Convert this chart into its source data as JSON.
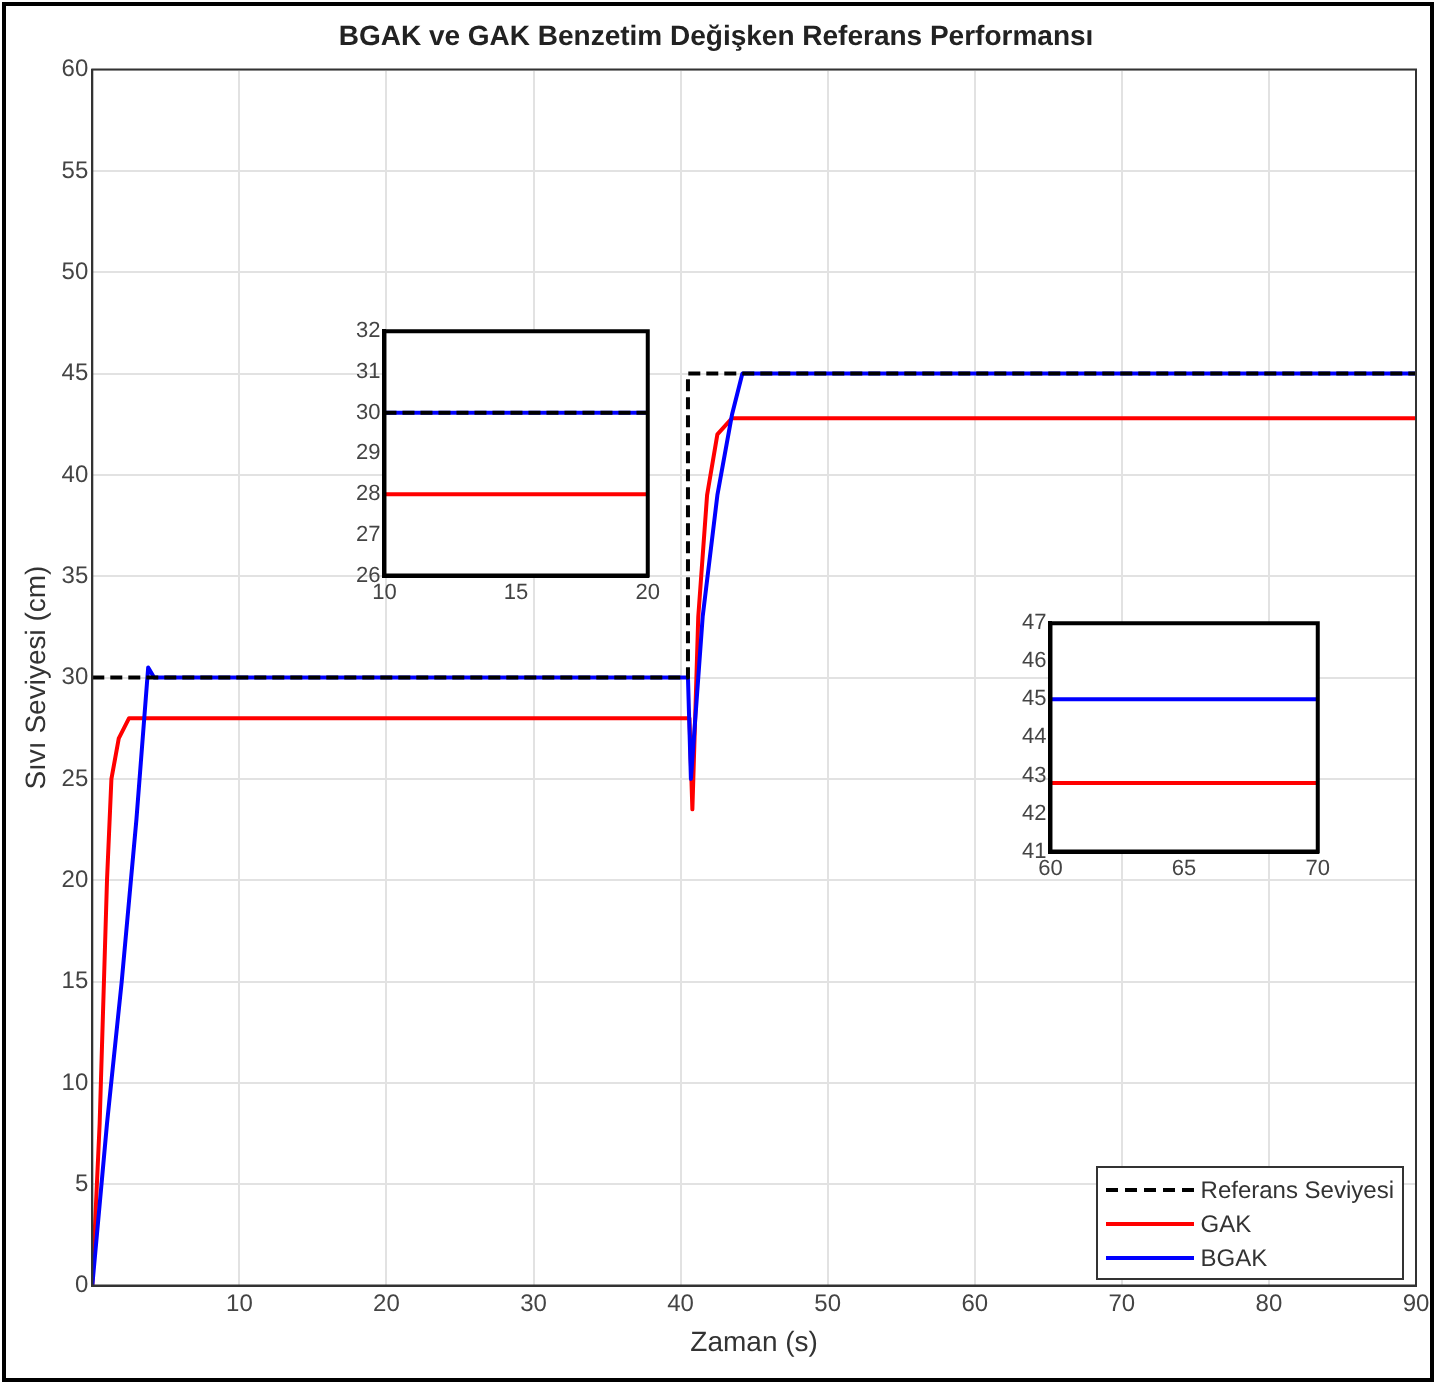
{
  "chart_data": [
    {
      "type": "line",
      "title": "BGAK ve GAK Benzetim Değişken Referans Performansı",
      "xlabel": "Zaman (s)",
      "ylabel": "Sıvı Seviyesi (cm)",
      "xlim": [
        0,
        90
      ],
      "xticks": [
        10,
        20,
        30,
        40,
        50,
        60,
        70,
        80,
        90
      ],
      "ylim": [
        0,
        60
      ],
      "yticks": [
        0,
        5,
        10,
        15,
        20,
        25,
        30,
        35,
        40,
        45,
        50,
        55,
        60
      ],
      "grid": true,
      "legend": "bottom right",
      "marker": "none",
      "series": [
        {
          "name": "Referans Seviyesi",
          "color": "#000000",
          "line_style": "dashed",
          "x": [
            0,
            40.5,
            40.5,
            90
          ],
          "values": [
            30,
            30,
            45,
            45
          ]
        },
        {
          "name": "GAK",
          "color": "#ff0000",
          "x": [
            0,
            0.5,
            1,
            1.3,
            1.8,
            2.5,
            3,
            40.6,
            40.8,
            41.2,
            41.8,
            42.5,
            43.5,
            90
          ],
          "values": [
            0,
            8,
            20,
            25,
            27,
            28,
            28,
            28,
            23.5,
            33,
            39,
            42,
            42.8,
            42.8
          ]
        },
        {
          "name": "BGAK",
          "color": "#0000ff",
          "x": [
            0,
            1,
            2,
            3,
            3.8,
            4.2,
            40.5,
            40.7,
            41.5,
            42.5,
            43.5,
            44.2,
            90
          ],
          "values": [
            0,
            8,
            15,
            23,
            30.5,
            30,
            30,
            25,
            33,
            39,
            43,
            45,
            45
          ]
        }
      ]
    },
    {
      "type": "line",
      "xlim": [
        10,
        20
      ],
      "xticks": [
        10,
        15,
        20
      ],
      "ylim": [
        26,
        32
      ],
      "yticks": [
        26,
        27,
        28,
        29,
        30,
        31,
        32
      ],
      "marker": "none",
      "series": [
        {
          "color": "#000000",
          "line_style": "dashed",
          "x": [
            10,
            20
          ],
          "values": [
            30,
            30
          ]
        },
        {
          "color": "#ff0000",
          "x": [
            10,
            20
          ],
          "values": [
            28,
            28
          ]
        },
        {
          "color": "#0000ff",
          "x": [
            10,
            20
          ],
          "values": [
            30,
            30
          ]
        }
      ]
    },
    {
      "type": "line",
      "xlim": [
        60,
        70
      ],
      "xticks": [
        60,
        65,
        70
      ],
      "ylim": [
        41,
        47
      ],
      "yticks": [
        41,
        42,
        43,
        44,
        45,
        46,
        47
      ],
      "marker": "none",
      "series": [
        {
          "color": "#ff0000",
          "x": [
            60,
            70
          ],
          "values": [
            42.8,
            42.8
          ]
        },
        {
          "color": "#0000ff",
          "x": [
            60,
            70
          ],
          "values": [
            45,
            45
          ]
        }
      ]
    }
  ]
}
